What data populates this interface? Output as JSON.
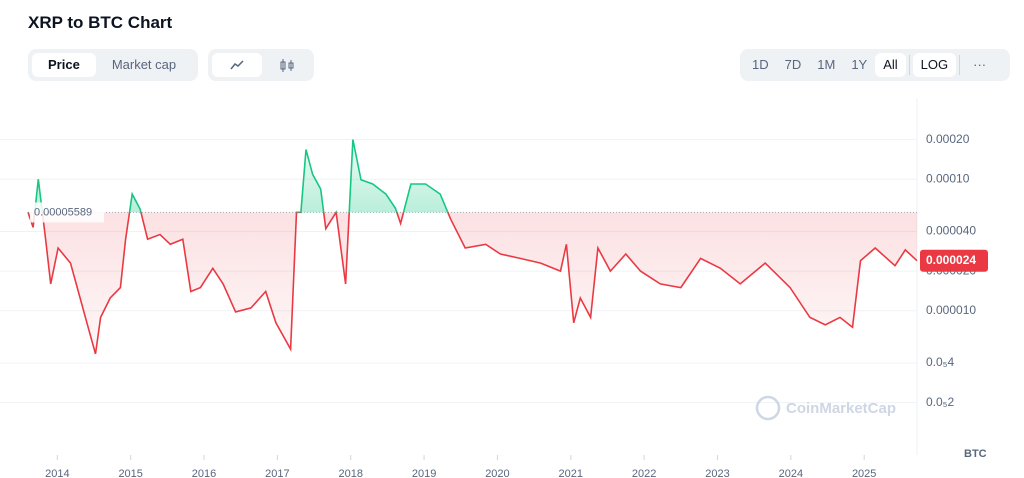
{
  "header": {
    "title": "XRP to BTC Chart"
  },
  "toolbar": {
    "views": [
      "Price",
      "Market cap"
    ],
    "ranges": [
      "1D",
      "7D",
      "1M",
      "1Y",
      "All"
    ],
    "scale": "LOG",
    "more": "···"
  },
  "chart_data": {
    "type": "line",
    "log_scale": true,
    "grid": true,
    "up_color": "#16c784",
    "down_color": "#ea3943",
    "baseline": 5.589e-05,
    "last": 2.4e-05,
    "y_unit": "BTC",
    "watermark": "CoinMarketCap",
    "xlim": [
      2013.6,
      2025.72
    ],
    "xticks": [
      2014,
      2015,
      2016,
      2017,
      2018,
      2019,
      2020,
      2021,
      2022,
      2023,
      2024,
      2025
    ],
    "ylim": [
      8e-07,
      0.0004
    ],
    "yticks": [
      {
        "value": 0.0002,
        "label": "0.00020"
      },
      {
        "value": 0.0001,
        "label": "0.00010"
      },
      {
        "value": 4e-05,
        "label": "0.000040"
      },
      {
        "value": 2e-05,
        "label": "0.000020"
      },
      {
        "value": 1e-05,
        "label": "0.000010"
      },
      {
        "value": 4e-06,
        "label": "0.0₅4"
      },
      {
        "value": 2e-06,
        "label": "0.0₅2"
      }
    ],
    "x": [
      2013.6,
      2013.67,
      2013.74,
      2013.84,
      2013.91,
      2014.01,
      2014.18,
      2014.31,
      2014.42,
      2014.52,
      2014.59,
      2014.72,
      2014.86,
      2014.93,
      2015.02,
      2015.13,
      2015.23,
      2015.4,
      2015.54,
      2015.71,
      2015.82,
      2015.95,
      2016.12,
      2016.26,
      2016.43,
      2016.64,
      2016.84,
      2016.98,
      2017.18,
      2017.26,
      2017.32,
      2017.39,
      2017.48,
      2017.59,
      2017.66,
      2017.8,
      2017.93,
      2018.03,
      2018.14,
      2018.3,
      2018.48,
      2018.61,
      2018.68,
      2018.82,
      2019.02,
      2019.22,
      2019.36,
      2019.56,
      2019.84,
      2020.04,
      2020.31,
      2020.59,
      2020.86,
      2020.94,
      2021.04,
      2021.13,
      2021.27,
      2021.37,
      2021.54,
      2021.75,
      2021.95,
      2022.22,
      2022.5,
      2022.77,
      2023.04,
      2023.31,
      2023.65,
      2023.99,
      2024.26,
      2024.47,
      2024.67,
      2024.84,
      2024.95,
      2025.15,
      2025.42,
      2025.56,
      2025.72
    ],
    "values": [
      5.6e-05,
      4.3e-05,
      0.0001,
      3.5e-05,
      1.6e-05,
      3e-05,
      2.3e-05,
      1.25e-05,
      7.5e-06,
      4.7e-06,
      8.9e-06,
      1.25e-05,
      1.5e-05,
      3.5e-05,
      7.7e-05,
      5.9e-05,
      3.5e-05,
      3.8e-05,
      3.2e-05,
      3.5e-05,
      1.4e-05,
      1.5e-05,
      2.1e-05,
      1.6e-05,
      9.8e-06,
      1.05e-05,
      1.4e-05,
      8.1e-06,
      5.1e-06,
      5.6e-05,
      5.6e-05,
      0.000168,
      0.000109,
      8.4e-05,
      4.2e-05,
      5.6e-05,
      1.6e-05,
      0.0002,
      9.9e-05,
      9.2e-05,
      7.7e-05,
      6e-05,
      4.6e-05,
      9.2e-05,
      9.2e-05,
      7.7e-05,
      5e-05,
      3e-05,
      3.2e-05,
      2.7e-05,
      2.5e-05,
      2.3e-05,
      2e-05,
      3.2e-05,
      8.1e-06,
      1.25e-05,
      8.9e-06,
      3e-05,
      2e-05,
      2.7e-05,
      2e-05,
      1.6e-05,
      1.5e-05,
      2.5e-05,
      2.1e-05,
      1.6e-05,
      2.3e-05,
      1.5e-05,
      8.9e-06,
      7.8e-06,
      8.9e-06,
      7.5e-06,
      2.4e-05,
      3e-05,
      2.2e-05,
      2.9e-05,
      2.4e-05
    ]
  }
}
